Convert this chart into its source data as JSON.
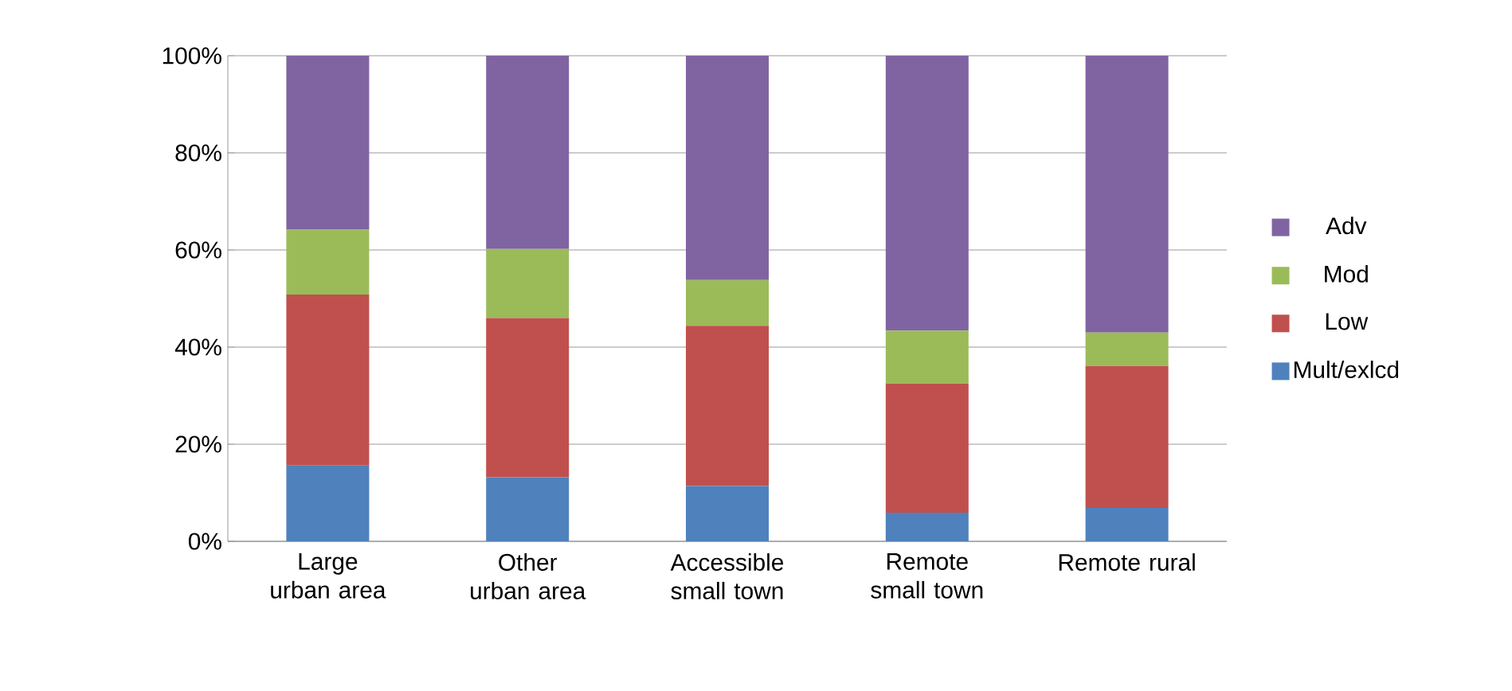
{
  "chart_data": {
    "type": "bar",
    "stacked": true,
    "categories": [
      "Large urban area",
      "Other urban area",
      "Accessible small town",
      "Remote small town",
      "Remote rural"
    ],
    "series": [
      {
        "name": "Mult/exlcd",
        "color": "#4f81bd",
        "values": [
          15.6,
          13.2,
          11.4,
          5.9,
          6.9
        ]
      },
      {
        "name": "Low",
        "color": "#c0504d",
        "values": [
          35.2,
          32.8,
          33.0,
          26.6,
          29.2
        ]
      },
      {
        "name": "Mod",
        "color": "#9bbb59",
        "values": [
          13.4,
          14.2,
          9.4,
          10.9,
          6.9
        ]
      },
      {
        "name": "Adv",
        "color": "#8064a2",
        "values": [
          35.8,
          39.8,
          46.2,
          56.6,
          57.0
        ]
      }
    ],
    "ylim": [
      0,
      100
    ],
    "yticks": [
      {
        "value": 0,
        "label": "0%"
      },
      {
        "value": 20,
        "label": "20%"
      },
      {
        "value": 40,
        "label": "40%"
      },
      {
        "value": 60,
        "label": "60%"
      },
      {
        "value": 80,
        "label": "80%"
      },
      {
        "value": 100,
        "label": "100%"
      }
    ],
    "grid": "y",
    "legend": "right"
  }
}
